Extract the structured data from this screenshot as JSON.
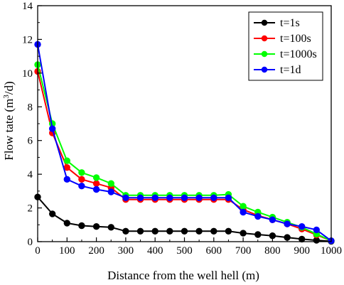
{
  "chart_data": {
    "type": "line",
    "title": "",
    "xlabel": "Distance from the well hell (m)",
    "ylabel": {
      "prefix": "Flow tate (m",
      "superscript": "3",
      "suffix": "/d)"
    },
    "xlim": [
      0,
      1000
    ],
    "ylim": [
      0,
      14
    ],
    "xticks": [
      0,
      100,
      200,
      300,
      400,
      500,
      600,
      700,
      800,
      900,
      1000
    ],
    "yticks": [
      0,
      2,
      4,
      6,
      8,
      10,
      12,
      14
    ],
    "grid": false,
    "legend_position": "top-right",
    "x": [
      0,
      50,
      100,
      150,
      200,
      250,
      300,
      350,
      400,
      450,
      500,
      550,
      600,
      650,
      700,
      750,
      800,
      850,
      900,
      950,
      1000
    ],
    "series": [
      {
        "name": "t=1s",
        "color": "#000000",
        "values": [
          2.65,
          1.65,
          1.1,
          0.95,
          0.9,
          0.85,
          0.62,
          0.62,
          0.62,
          0.62,
          0.62,
          0.62,
          0.62,
          0.62,
          0.5,
          0.42,
          0.35,
          0.25,
          0.15,
          0.08,
          0.02
        ]
      },
      {
        "name": "t=100s",
        "color": "#ff0000",
        "values": [
          10.1,
          6.45,
          4.4,
          3.7,
          3.45,
          3.2,
          2.5,
          2.5,
          2.5,
          2.5,
          2.5,
          2.5,
          2.5,
          2.5,
          1.9,
          1.55,
          1.3,
          1.05,
          0.75,
          0.4,
          0.05
        ]
      },
      {
        "name": "t=1000s",
        "color": "#00ff00",
        "values": [
          10.5,
          7.0,
          4.8,
          4.1,
          3.8,
          3.45,
          2.75,
          2.75,
          2.75,
          2.75,
          2.75,
          2.75,
          2.75,
          2.8,
          2.1,
          1.75,
          1.45,
          1.15,
          0.85,
          0.45,
          0.05
        ]
      },
      {
        "name": "t=1d",
        "color": "#0000ff",
        "values": [
          11.7,
          6.7,
          3.7,
          3.3,
          3.1,
          2.95,
          2.6,
          2.6,
          2.6,
          2.6,
          2.6,
          2.6,
          2.6,
          2.6,
          1.75,
          1.5,
          1.3,
          1.05,
          0.9,
          0.7,
          0.05
        ]
      }
    ]
  }
}
